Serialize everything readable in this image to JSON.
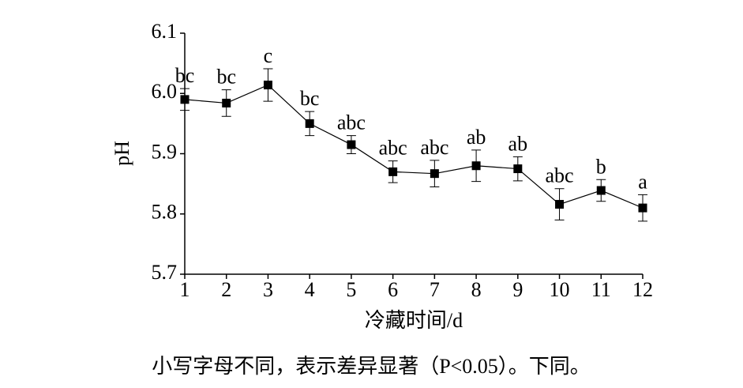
{
  "chart_data": {
    "type": "line",
    "x": [
      1,
      2,
      3,
      4,
      5,
      6,
      7,
      8,
      9,
      10,
      11,
      12
    ],
    "series": [
      {
        "color": "#000000",
        "values": [
          5.99,
          5.984,
          6.014,
          5.95,
          5.915,
          5.87,
          5.867,
          5.88,
          5.875,
          5.816,
          5.839,
          5.81
        ],
        "errors": [
          0.018,
          0.022,
          0.027,
          0.02,
          0.015,
          0.018,
          0.022,
          0.026,
          0.02,
          0.026,
          0.018,
          0.022
        ],
        "significance": [
          "bc",
          "bc",
          "c",
          "bc",
          "abc",
          "abc",
          "abc",
          "ab",
          "ab",
          "abc",
          "b",
          "a"
        ]
      }
    ],
    "xlim": [
      1,
      12
    ],
    "xticks": [
      1,
      2,
      3,
      4,
      5,
      6,
      7,
      8,
      9,
      10,
      11,
      12
    ],
    "ylim": [
      5.7,
      6.1
    ],
    "yticks": [
      5.7,
      5.8,
      5.9,
      {
        "value": 6.0,
        "label": "6.0"
      },
      6.1
    ],
    "ylabel": "pH",
    "xlabel": "冷藏时间/d",
    "caption": "小写字母不同，表示差异显著（P<0.05）。下同。"
  }
}
